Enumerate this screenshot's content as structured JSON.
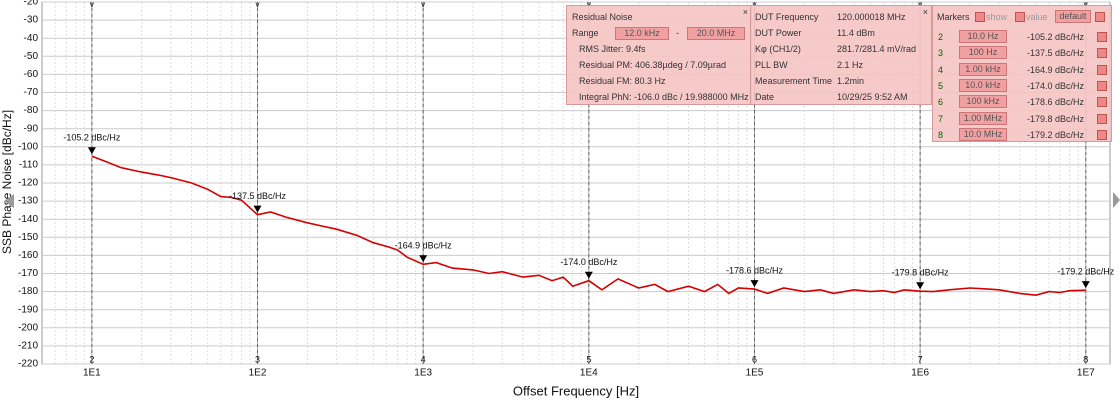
{
  "chart_data": {
    "type": "line",
    "x_label": "Offset Frequency [Hz]",
    "y_label": "SSB Phase Noise [dBc/Hz]",
    "log_x": true,
    "grid": true,
    "xlim": [
      5,
      14000000
    ],
    "ylim": [
      -220,
      -20
    ],
    "xticks": [
      {
        "value": 10,
        "label": "1E1"
      },
      {
        "value": 100,
        "label": "1E2"
      },
      {
        "value": 1000,
        "label": "1E3"
      },
      {
        "value": 10000,
        "label": "1E4"
      },
      {
        "value": 100000,
        "label": "1E5"
      },
      {
        "value": 1000000,
        "label": "1E6"
      },
      {
        "value": 10000000,
        "label": "1E7"
      }
    ],
    "yticks": [
      -20,
      -30,
      -40,
      -50,
      -60,
      -70,
      -80,
      -90,
      -100,
      -110,
      -120,
      -130,
      -140,
      -150,
      -160,
      -170,
      -180,
      -190,
      -200,
      -210,
      -220
    ],
    "series": [
      {
        "color": "#d40000",
        "x": [
          10,
          12,
          15,
          20,
          25,
          30,
          40,
          50,
          60,
          70,
          80,
          100,
          120,
          150,
          200,
          250,
          300,
          400,
          500,
          600,
          700,
          800,
          1000,
          1200,
          1500,
          2000,
          2500,
          3000,
          4000,
          5000,
          6000,
          7000,
          8000,
          10000,
          12000,
          15000,
          20000,
          25000,
          30000,
          40000,
          50000,
          60000,
          70000,
          80000,
          100000,
          120000,
          150000,
          200000,
          250000,
          300000,
          400000,
          500000,
          600000,
          700000,
          800000,
          1000000,
          1200000,
          1500000,
          2000000,
          2500000,
          3000000,
          4000000,
          5000000,
          6000000,
          7000000,
          8000000,
          10000000
        ],
        "values": [
          -105.2,
          -108,
          -111.5,
          -114,
          -115.5,
          -117,
          -120,
          -123.5,
          -127.5,
          -128,
          -129.5,
          -137.5,
          -136,
          -139,
          -142,
          -144,
          -145.5,
          -149,
          -153,
          -155,
          -157,
          -161,
          -164.9,
          -164,
          -167,
          -168,
          -170,
          -169,
          -172,
          -171,
          -174,
          -172,
          -177,
          -174,
          -179,
          -173,
          -178,
          -176,
          -180,
          -177,
          -180,
          -176,
          -181,
          -178,
          -178.6,
          -181,
          -178,
          -180,
          -179,
          -181,
          -179,
          -180,
          -179.5,
          -180.5,
          -179,
          -179.8,
          -180,
          -179,
          -178,
          -178.5,
          -179,
          -181,
          -182,
          -180,
          -180.5,
          -179.5,
          -179.2
        ]
      }
    ],
    "markers": {
      "ids": [
        2,
        3,
        4,
        5,
        6,
        7,
        8
      ],
      "x": [
        10,
        100,
        1000,
        10000,
        100000,
        1000000,
        10000000
      ],
      "x_labels": [
        "10.0 Hz",
        "100 Hz",
        "1.00 kHz",
        "10.0 kHz",
        "100 kHz",
        "1.00 MHz",
        "10.0 MHz"
      ],
      "values": [
        -105.2,
        -137.5,
        -164.9,
        -174.0,
        -178.6,
        -179.8,
        -179.2
      ],
      "value_labels": [
        "-105.2 dBc/Hz",
        "-137.5 dBc/Hz",
        "-164.9 dBc/Hz",
        "-174.0 dBc/Hz",
        "-178.6 dBc/Hz",
        "-179.8 dBc/Hz",
        "-179.2 dBc/Hz"
      ]
    }
  },
  "residual_noise": {
    "title": "Residual Noise",
    "range_label": "Range",
    "range_from": "12.0 kHz",
    "range_sep": "-",
    "range_to": "20.0 MHz",
    "rows": [
      "RMS Jitter: 9.4fs",
      "Residual PM: 406.38µdeg / 7.09µrad",
      "Residual FM: 80.3 Hz",
      "Integral PhN: -106.0 dBc / 19.988000 MHz"
    ]
  },
  "dut": {
    "rows": [
      [
        "DUT Frequency",
        "120.000018 MHz"
      ],
      [
        "DUT Power",
        "11.4 dBm"
      ],
      [
        "Kφ (CH1/2)",
        "281.7/281.4 mV/rad"
      ],
      [
        "PLL BW",
        "2.1 Hz"
      ],
      [
        "Measurement Time",
        "1.2min"
      ],
      [
        "Date",
        "10/29/25 9:52 AM"
      ]
    ]
  },
  "markers_panel": {
    "title": "Markers",
    "show": "show",
    "value": "value",
    "default": "default"
  }
}
